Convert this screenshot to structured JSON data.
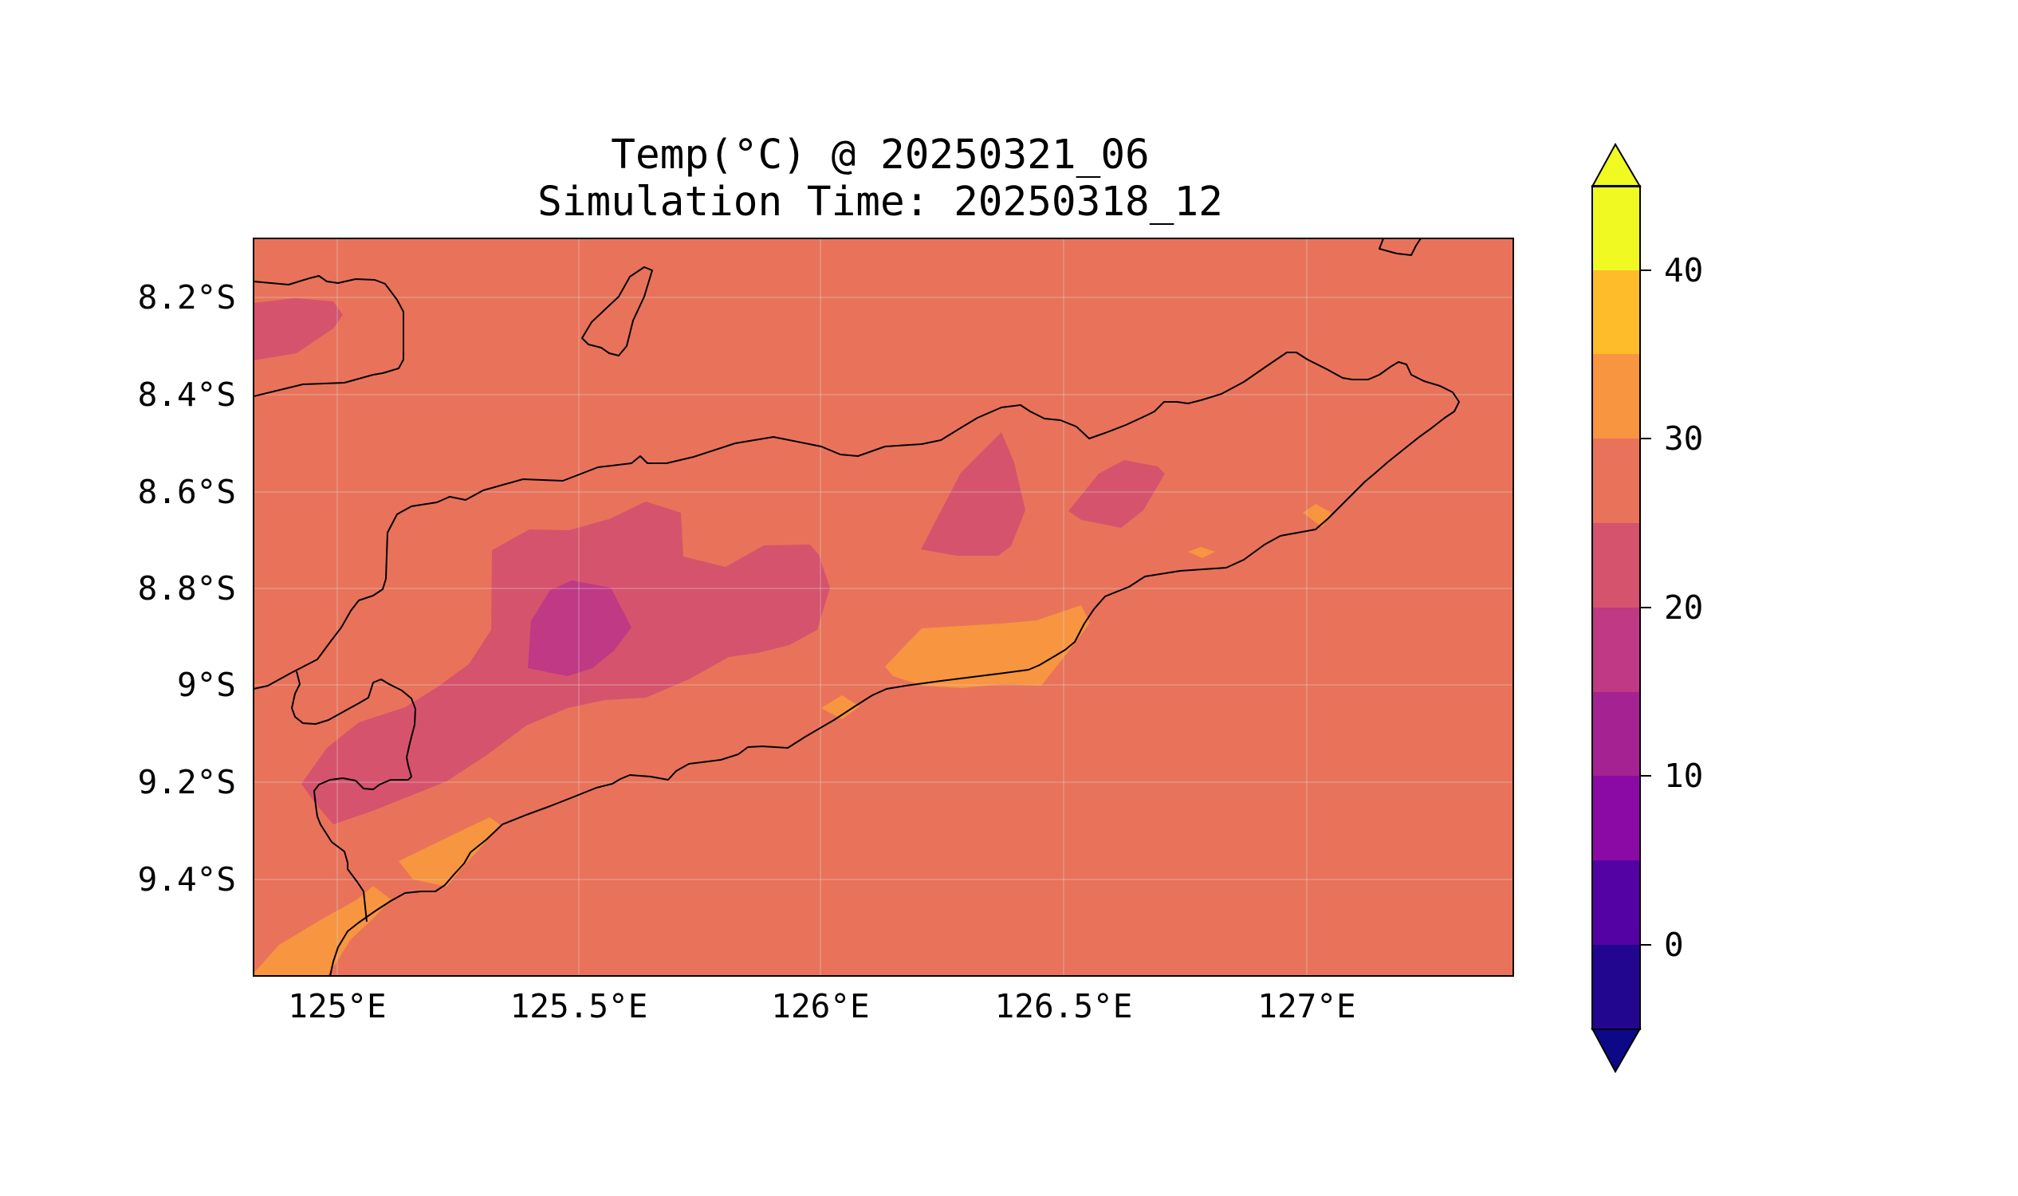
{
  "title": {
    "line1": "Temp(°C) @ 20250321_06",
    "line2": "Simulation Time: 20250318_12"
  },
  "map": {
    "lon_range": [
      124.83,
      127.41
    ],
    "lat_range": [
      -9.59,
      -8.08
    ],
    "lon_ticks": [
      "125°E",
      "125.5°E",
      "126°E",
      "126.5°E",
      "127°E"
    ],
    "lat_ticks": [
      "8.2°S",
      "8.4°S",
      "8.6°S",
      "8.8°S",
      "9°S",
      "9.2°S",
      "9.4°S"
    ],
    "background_temp_band": "25-30",
    "colors": {
      "background": "#E8735A",
      "band_20_25": "#D6536D",
      "band_15_20": "#BF3984",
      "band_30_35": "#F89540",
      "coastline": "#000000"
    }
  },
  "colorbar": {
    "label_values": [
      "40",
      "30",
      "20",
      "10",
      "0"
    ],
    "bounds": [
      -5,
      0,
      5,
      10,
      15,
      20,
      25,
      30,
      35,
      40,
      45
    ],
    "extend": "both",
    "colors": [
      "#0D0887",
      "#220690",
      "#5402A3",
      "#8B0AA5",
      "#A42291",
      "#BF3984",
      "#D6536D",
      "#E8735A",
      "#F89540",
      "#FEBC2A",
      "#F0F921"
    ]
  }
}
